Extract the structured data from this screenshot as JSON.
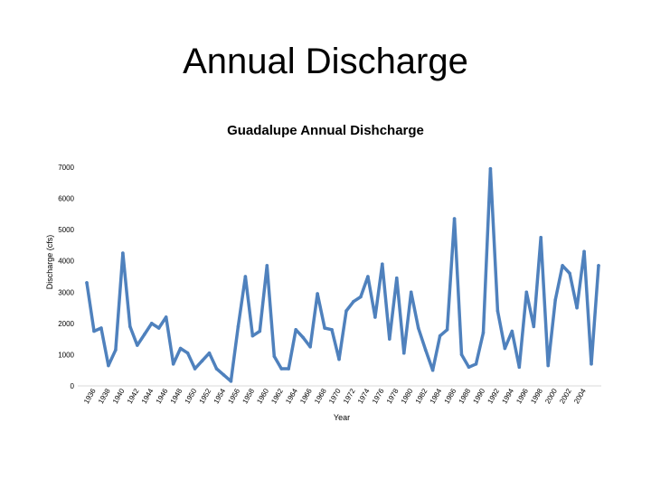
{
  "slide": {
    "title": "Annual Discharge"
  },
  "chart_data": {
    "type": "line",
    "title": "Guadalupe Annual Dishcharge",
    "xlabel": "Year",
    "ylabel": "Discharge (cfs)",
    "ylim": [
      0,
      7000
    ],
    "yticks": [
      0,
      1000,
      2000,
      3000,
      4000,
      5000,
      6000,
      7000
    ],
    "x_tick_labels": [
      "1936",
      "1938",
      "1940",
      "1942",
      "1944",
      "1946",
      "1948",
      "1950",
      "1952",
      "1954",
      "1956",
      "1958",
      "1960",
      "1962",
      "1964",
      "1966",
      "1968",
      "1970",
      "1972",
      "1974",
      "1976",
      "1978",
      "1980",
      "1982",
      "1984",
      "1986",
      "1988",
      "1990",
      "1992",
      "1994",
      "1996",
      "1998",
      "2000",
      "2002",
      "2004"
    ],
    "grid": false,
    "legend": "none",
    "line_color": "#4f81bd",
    "series": [
      {
        "name": "Discharge",
        "x": [
          1935,
          1936,
          1937,
          1938,
          1939,
          1940,
          1941,
          1942,
          1943,
          1944,
          1945,
          1946,
          1947,
          1948,
          1949,
          1950,
          1951,
          1952,
          1953,
          1954,
          1955,
          1956,
          1957,
          1958,
          1959,
          1960,
          1961,
          1962,
          1963,
          1964,
          1965,
          1966,
          1967,
          1968,
          1969,
          1970,
          1971,
          1972,
          1973,
          1974,
          1975,
          1976,
          1977,
          1978,
          1979,
          1980,
          1981,
          1982,
          1983,
          1984,
          1985,
          1986,
          1987,
          1988,
          1989,
          1990,
          1991,
          1992,
          1993,
          1994,
          1995,
          1996,
          1997,
          1998,
          1999,
          2000,
          2001,
          2002,
          2003,
          2004,
          2005,
          2006
        ],
        "values": [
          3300,
          1750,
          1850,
          650,
          1150,
          4250,
          1900,
          1300,
          1650,
          2000,
          1850,
          2200,
          700,
          1200,
          1050,
          550,
          800,
          1050,
          550,
          350,
          150,
          1900,
          3500,
          1600,
          1750,
          3850,
          950,
          550,
          550,
          1800,
          1550,
          1250,
          2950,
          1850,
          1800,
          850,
          2400,
          2700,
          2850,
          3500,
          2200,
          3900,
          1500,
          3450,
          1050,
          3000,
          1850,
          1150,
          500,
          1600,
          1800,
          5350,
          1000,
          600,
          700,
          1700,
          6950,
          2400,
          1200,
          1750,
          600,
          3000,
          1900,
          4750,
          650,
          2750,
          3850,
          3600,
          2500,
          4300,
          700,
          3850
        ]
      }
    ]
  }
}
